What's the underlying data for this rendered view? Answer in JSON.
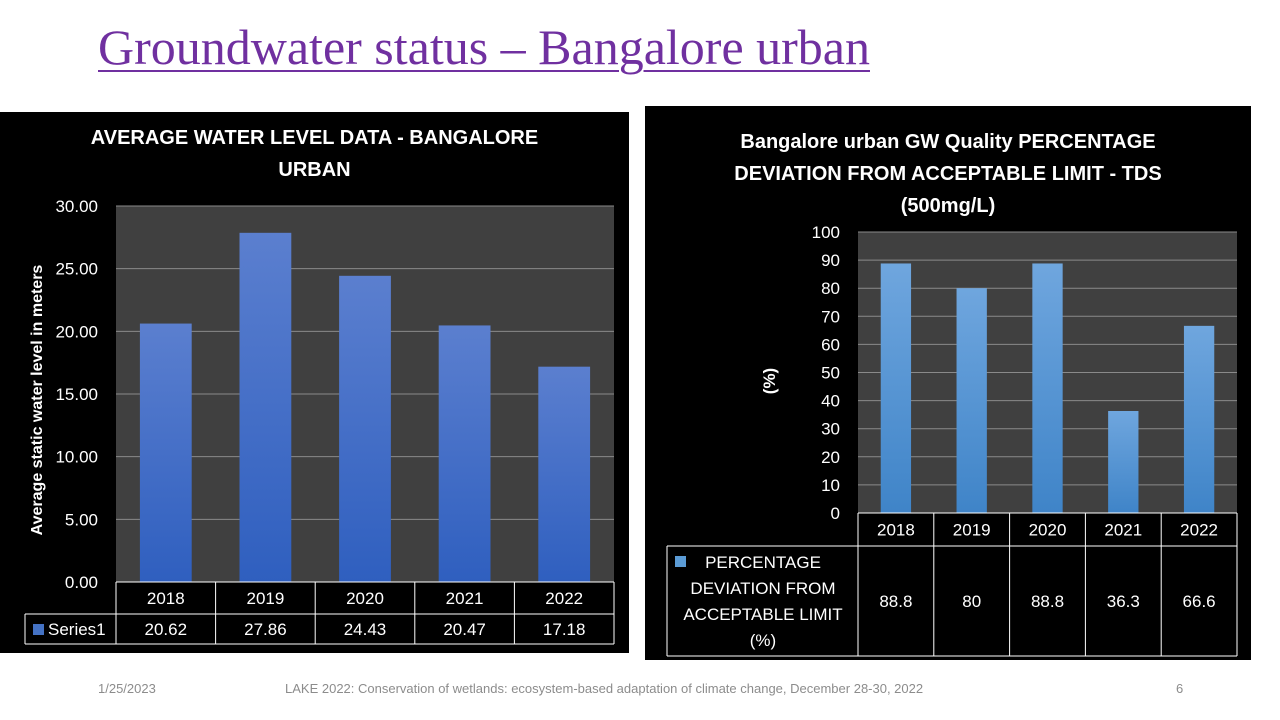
{
  "slide": {
    "title": "Groundwater status – Bangalore urban",
    "footer": {
      "date": "1/25/2023",
      "event": "LAKE 2022: Conservation of wetlands: ecosystem-based adaptation of climate change, December 28-30, 2022",
      "page": "6"
    }
  },
  "chart_data": [
    {
      "type": "bar",
      "title_lines": [
        "AVERAGE WATER LEVEL DATA - BANGALORE",
        "URBAN"
      ],
      "categories": [
        "2018",
        "2019",
        "2020",
        "2021",
        "2022"
      ],
      "series": [
        {
          "name": "Series1",
          "values": [
            20.62,
            27.86,
            24.43,
            20.47,
            17.18
          ],
          "color": "#4472c4"
        }
      ],
      "table_values": [
        "20.62",
        "27.86",
        "24.43",
        "20.47",
        "17.18"
      ],
      "ylabel": "Average static water level in meters",
      "xlabel": "",
      "ylim": [
        0,
        30
      ],
      "yticks": [
        "0.00",
        "5.00",
        "10.00",
        "15.00",
        "20.00",
        "25.00",
        "30.00"
      ],
      "grid": true,
      "legend": "data-table"
    },
    {
      "type": "bar",
      "title_lines": [
        "Bangalore urban GW Quality PERCENTAGE",
        "DEVIATION FROM ACCEPTABLE LIMIT - TDS",
        "(500mg/L)"
      ],
      "categories": [
        "2018",
        "2019",
        "2020",
        "2021",
        "2022"
      ],
      "series": [
        {
          "name": "PERCENTAGE DEVIATION FROM ACCEPTABLE LIMIT (%)",
          "values": [
            88.8,
            80,
            88.8,
            36.3,
            66.6
          ],
          "color": "#5b9bd5"
        }
      ],
      "series_label_lines": [
        "PERCENTAGE",
        "DEVIATION FROM",
        "ACCEPTABLE LIMIT",
        "(%)"
      ],
      "table_values": [
        "88.8",
        "80",
        "88.8",
        "36.3",
        "66.6"
      ],
      "ylabel": "(%)",
      "xlabel": "",
      "ylim": [
        0,
        100
      ],
      "yticks": [
        "0",
        "10",
        "20",
        "30",
        "40",
        "50",
        "60",
        "70",
        "80",
        "90",
        "100"
      ],
      "grid": true,
      "legend": "data-table"
    }
  ]
}
